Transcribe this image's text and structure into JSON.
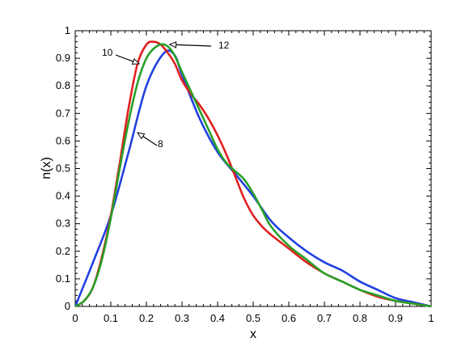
{
  "chart_data": {
    "type": "line",
    "title": "",
    "xlabel": "x",
    "ylabel": "n(x)",
    "xlim": [
      0,
      1
    ],
    "ylim": [
      0,
      1
    ],
    "grid": false,
    "legend": "none",
    "x_ticks": [
      "0",
      "0.1",
      "0.2",
      "0.3",
      "0.4",
      "0.5",
      "0.6",
      "0.7",
      "0.8",
      "0.9",
      "1"
    ],
    "y_ticks": [
      "0",
      "0.1",
      "0.2",
      "0.3",
      "0.4",
      "0.5",
      "0.6",
      "0.7",
      "0.8",
      "0.9",
      "1"
    ],
    "series": [
      {
        "label": "8",
        "color": "#2140e0",
        "x": [
          0,
          0.05,
          0.1,
          0.15,
          0.2,
          0.25,
          0.28,
          0.3,
          0.35,
          0.4,
          0.45,
          0.5,
          0.55,
          0.6,
          0.65,
          0.7,
          0.75,
          0.8,
          0.85,
          0.9,
          0.95,
          1
        ],
        "y": [
          0,
          0.16,
          0.33,
          0.56,
          0.8,
          0.92,
          0.91,
          0.84,
          0.68,
          0.56,
          0.48,
          0.4,
          0.31,
          0.25,
          0.2,
          0.16,
          0.13,
          0.09,
          0.06,
          0.03,
          0.015,
          0
        ]
      },
      {
        "label": "10",
        "color": "#e02020",
        "x": [
          0,
          0.025,
          0.05,
          0.075,
          0.1,
          0.125,
          0.15,
          0.175,
          0.2,
          0.22,
          0.24,
          0.26,
          0.28,
          0.3,
          0.325,
          0.35,
          0.375,
          0.4,
          0.425,
          0.45,
          0.475,
          0.5,
          0.525,
          0.55,
          0.6,
          0.65,
          0.7,
          0.75,
          0.8,
          0.85,
          0.9,
          0.95,
          1
        ],
        "y": [
          0,
          0.02,
          0.07,
          0.18,
          0.33,
          0.52,
          0.72,
          0.88,
          0.95,
          0.96,
          0.95,
          0.92,
          0.88,
          0.82,
          0.77,
          0.73,
          0.68,
          0.62,
          0.55,
          0.47,
          0.39,
          0.33,
          0.29,
          0.26,
          0.21,
          0.16,
          0.12,
          0.09,
          0.06,
          0.035,
          0.02,
          0.01,
          0
        ]
      },
      {
        "label": "12",
        "color": "#28a028",
        "x": [
          0,
          0.025,
          0.05,
          0.075,
          0.1,
          0.125,
          0.15,
          0.175,
          0.2,
          0.225,
          0.25,
          0.275,
          0.3,
          0.325,
          0.35,
          0.375,
          0.4,
          0.425,
          0.45,
          0.475,
          0.5,
          0.525,
          0.55,
          0.6,
          0.65,
          0.7,
          0.75,
          0.8,
          0.85,
          0.9,
          0.95,
          1
        ],
        "y": [
          0,
          0.02,
          0.07,
          0.17,
          0.32,
          0.5,
          0.67,
          0.81,
          0.9,
          0.94,
          0.95,
          0.92,
          0.85,
          0.78,
          0.71,
          0.64,
          0.57,
          0.52,
          0.49,
          0.46,
          0.41,
          0.35,
          0.29,
          0.22,
          0.17,
          0.12,
          0.09,
          0.06,
          0.04,
          0.02,
          0.01,
          0
        ]
      }
    ],
    "annotations": [
      {
        "text": "10",
        "arrow_to": [
          0.18,
          0.88
        ]
      },
      {
        "text": "12",
        "arrow_to": [
          0.265,
          0.95
        ]
      },
      {
        "text": "8",
        "arrow_to": [
          0.175,
          0.63
        ]
      }
    ]
  }
}
